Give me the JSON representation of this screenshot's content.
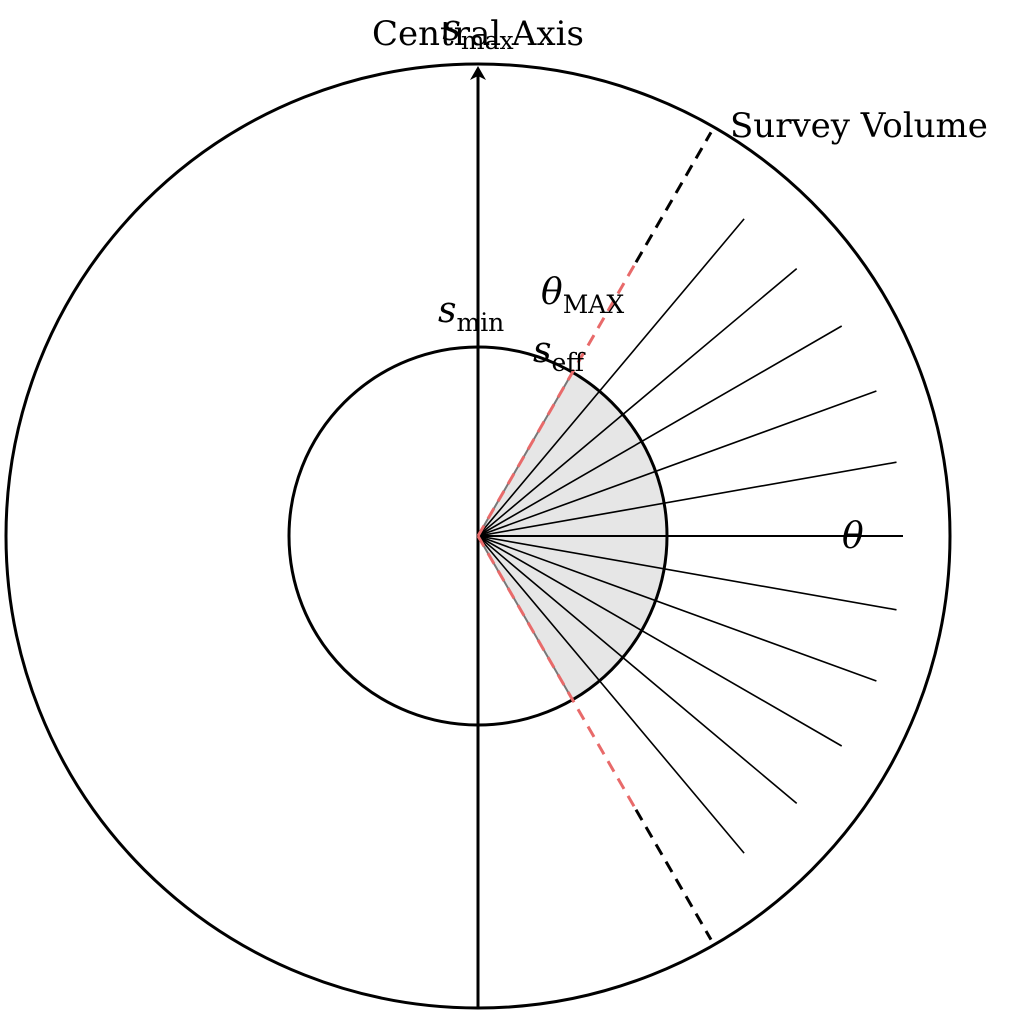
{
  "labels": {
    "central_axis": "Central Axis",
    "survey_volume": "Survey Volume",
    "theta": "θ",
    "theta_max_symbol": "θ",
    "theta_max_subscript": "MAX",
    "s_min_symbol": "s",
    "s_min_subscript": "min",
    "s_eff_symbol": "s",
    "s_eff_subscript": "eff",
    "s_max_symbol": "s",
    "s_max_subscript": "max"
  },
  "diagram": {
    "theta_max_deg": 30,
    "ray_angles_deg": [
      40,
      50,
      60,
      70,
      80,
      90,
      100,
      110,
      120,
      130,
      140
    ],
    "colors": {
      "stroke": "#000000",
      "boundary_dashed": "#e86a6a",
      "wedge_fill": "#e6e6e6"
    }
  }
}
